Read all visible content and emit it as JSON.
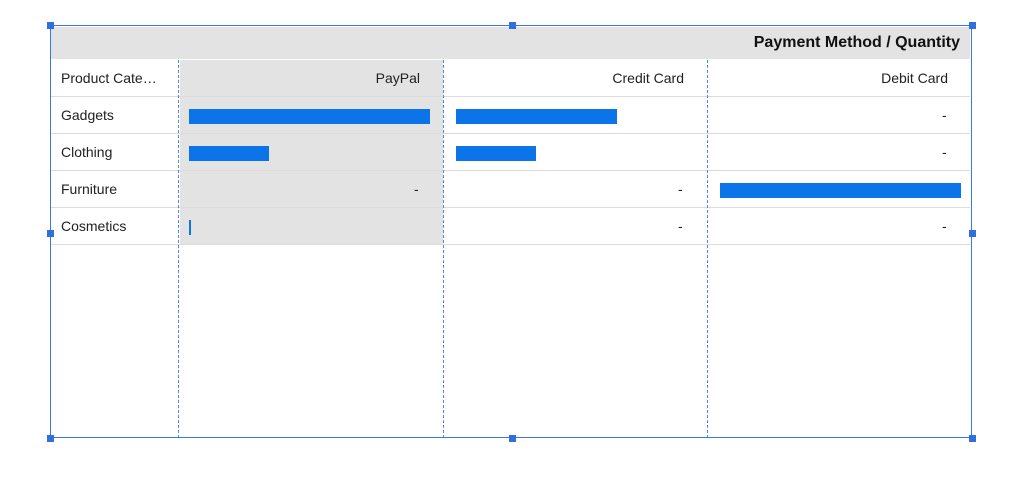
{
  "chart_data": {
    "type": "table",
    "title": "Payment Method / Quantity",
    "row_header": "Product Cate…",
    "columns": [
      "PayPal",
      "Credit Card",
      "Debit Card"
    ],
    "rows": [
      {
        "category": "Gadgets",
        "values": [
          30,
          20,
          null
        ]
      },
      {
        "category": "Clothing",
        "values": [
          10,
          10,
          null
        ]
      },
      {
        "category": "Furniture",
        "values": [
          null,
          null,
          30
        ]
      },
      {
        "category": "Cosmetics",
        "values": [
          0.3,
          null,
          null
        ]
      }
    ],
    "scale_max": 30,
    "missing_label": "-",
    "bar_color": "#0b74e8"
  }
}
